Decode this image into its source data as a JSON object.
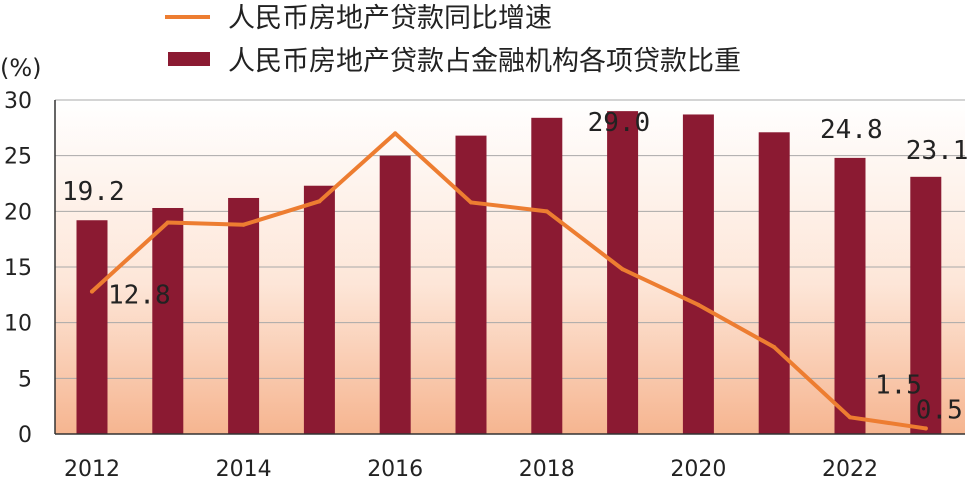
{
  "chart_data": {
    "type": "bar",
    "categories": [
      "2012",
      "2013",
      "2014",
      "2015",
      "2016",
      "2017",
      "2018",
      "2019",
      "2020",
      "2021",
      "2022",
      "2023"
    ],
    "x_tick_labels": [
      "2012",
      "2014",
      "2016",
      "2018",
      "2020",
      "2022"
    ],
    "y_tick_labels": [
      "0",
      "5",
      "10",
      "15",
      "20",
      "25",
      "30"
    ],
    "ylim": [
      0,
      30
    ],
    "ylabel": "(%)",
    "grid": true,
    "legend_position": "top",
    "series": [
      {
        "name": "人民币房地产贷款同比增速",
        "type": "line",
        "color": "#ED7D31",
        "values": [
          12.8,
          19.0,
          18.8,
          20.9,
          27.0,
          20.8,
          20.0,
          14.8,
          11.6,
          7.8,
          1.5,
          0.5
        ]
      },
      {
        "name": "人民币房地产贷款占金融机构各项贷款比重",
        "type": "bar",
        "color": "#8B1A32",
        "values": [
          19.2,
          20.3,
          21.2,
          22.3,
          25.0,
          26.8,
          28.4,
          29.0,
          28.7,
          27.1,
          24.8,
          23.1
        ]
      }
    ],
    "annotations": [
      {
        "text": "19.2",
        "category": "2012",
        "value": 19.2
      },
      {
        "text": "12.8",
        "category": "2012",
        "value": 12.8
      },
      {
        "text": "29.0",
        "category": "2019",
        "value": 29.0
      },
      {
        "text": "24.8",
        "category": "2022",
        "value": 24.8
      },
      {
        "text": "23.1",
        "category": "2023",
        "value": 23.1
      },
      {
        "text": "1.5",
        "category": "2022",
        "value": 1.5
      },
      {
        "text": "0.5",
        "category": "2023",
        "value": 0.5
      }
    ]
  }
}
